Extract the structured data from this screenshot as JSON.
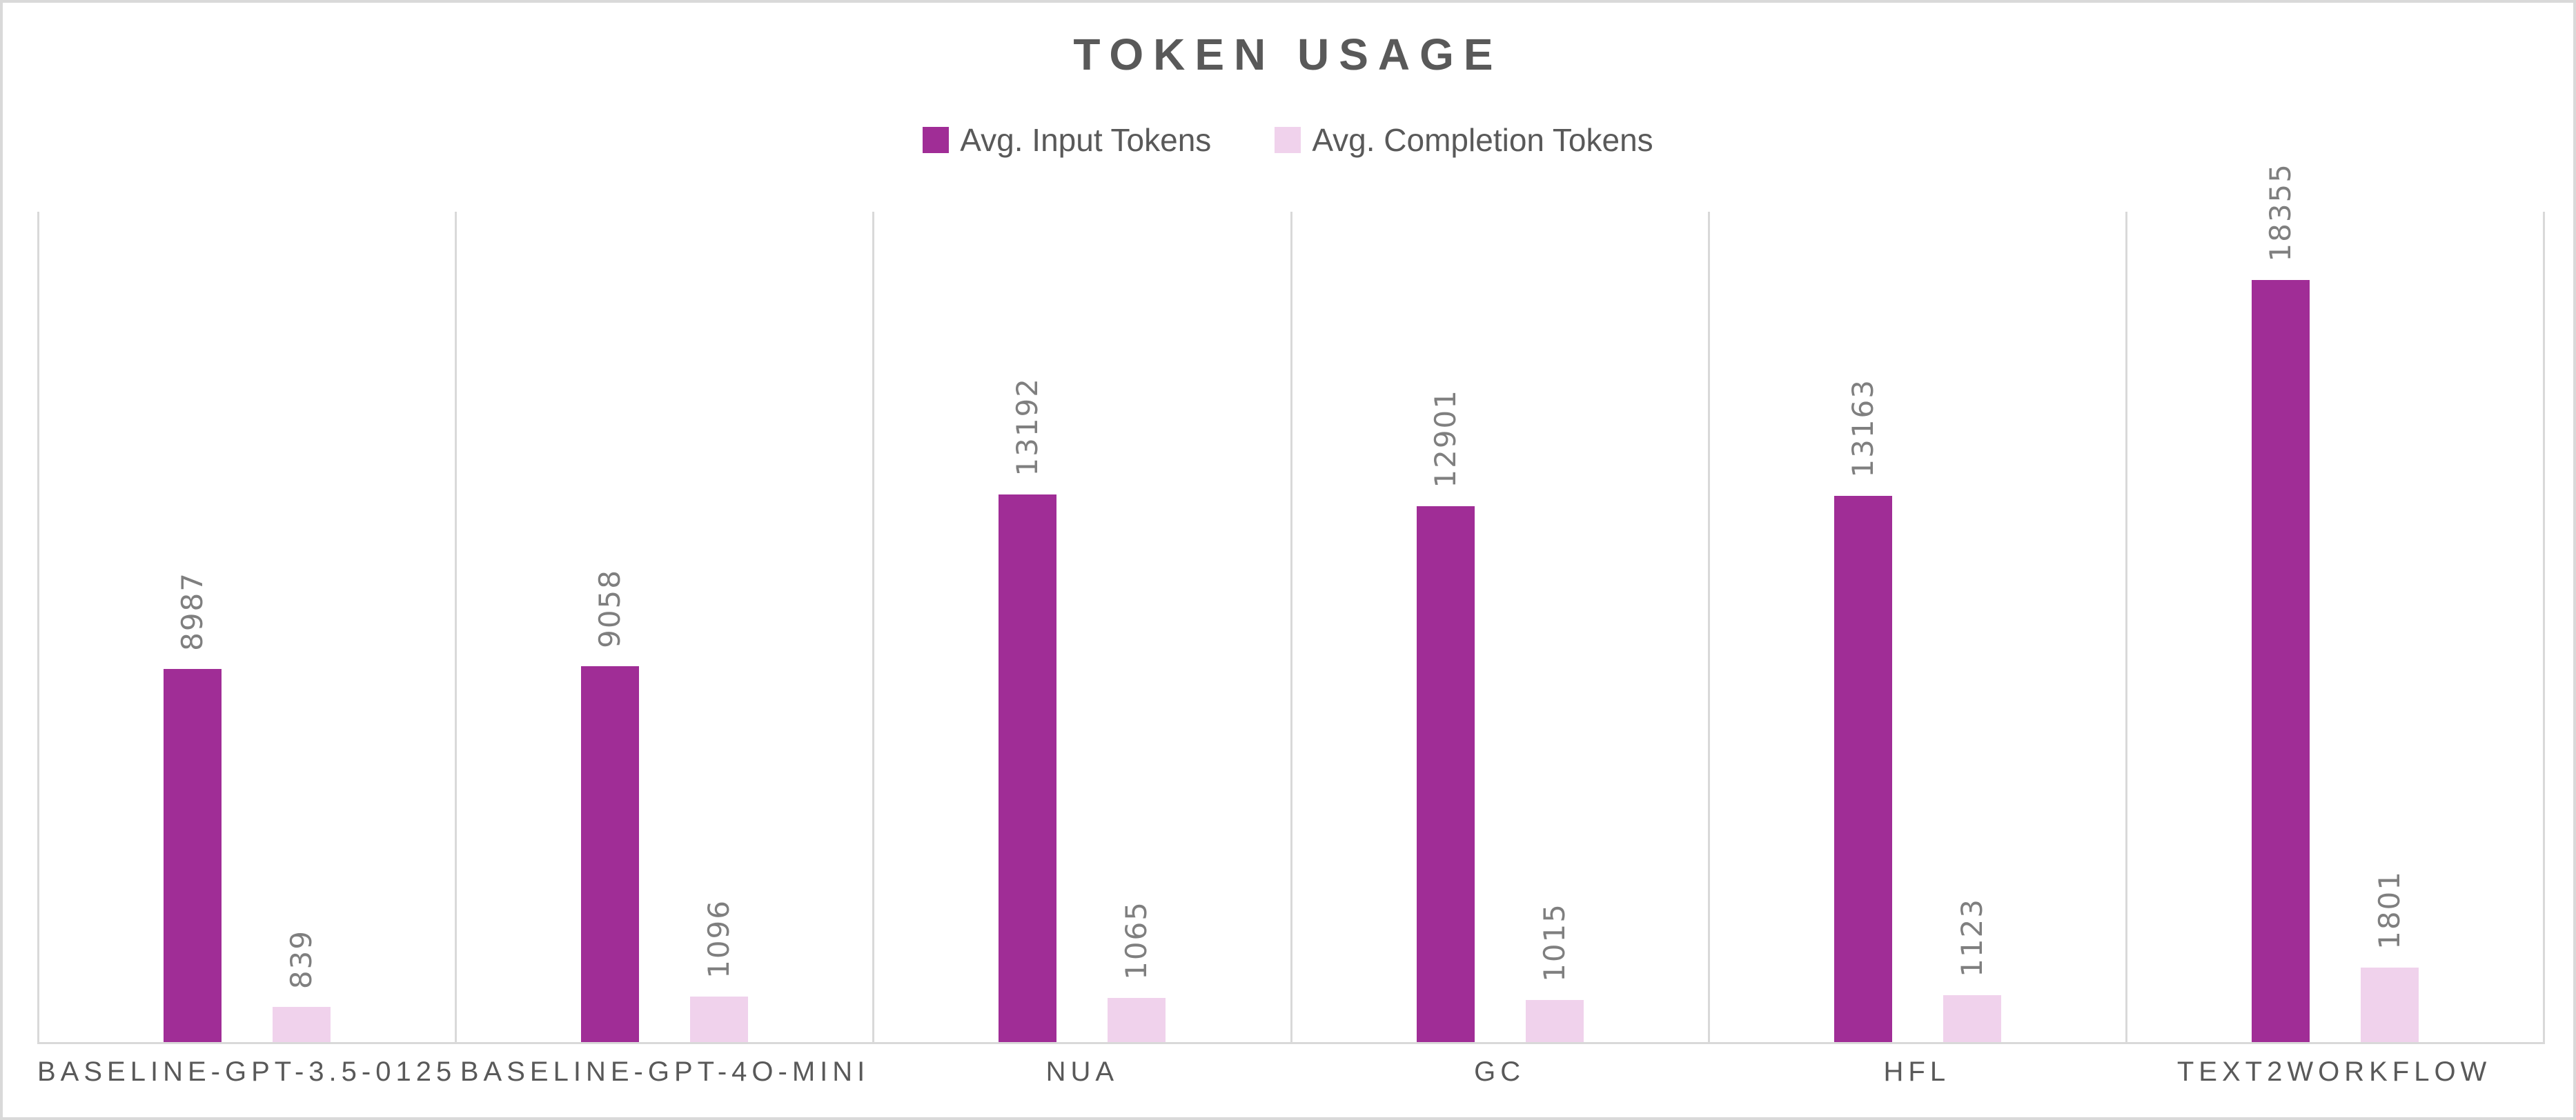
{
  "title": "TOKEN USAGE",
  "legend": [
    {
      "label": "Avg. Input Tokens",
      "color": "#a02d96"
    },
    {
      "label": "Avg. Completion Tokens",
      "color": "#f0d2ec"
    }
  ],
  "colors": {
    "input_series": "#a02d96",
    "completion_series": "#f0d2ec",
    "gridline": "#d9d9d9",
    "title_text": "#595959",
    "axis_text": "#595959",
    "value_label_text": "#7f7f7f"
  },
  "chart_data": {
    "type": "bar",
    "title": "TOKEN USAGE",
    "categories": [
      "BASELINE-GPT-3.5-0125",
      "BASELINE-GPT-4O-MINI",
      "NUA",
      "GC",
      "HFL",
      "TEXT2WORKFLOW"
    ],
    "series": [
      {
        "name": "Avg. Input Tokens",
        "color": "#a02d96",
        "values": [
          8987,
          9058,
          13192,
          12901,
          13163,
          18355
        ]
      },
      {
        "name": "Avg. Completion Tokens",
        "color": "#f0d2ec",
        "values": [
          839,
          1096,
          1065,
          1015,
          1123,
          1801
        ]
      }
    ],
    "xlabel": "",
    "ylabel": "",
    "ylim": [
      0,
      20000
    ],
    "y_axis_visible": false,
    "grid": "vertical-category-separators-only",
    "legend_position": "top-center",
    "data_labels": "value-above-bar-rotated-90"
  }
}
